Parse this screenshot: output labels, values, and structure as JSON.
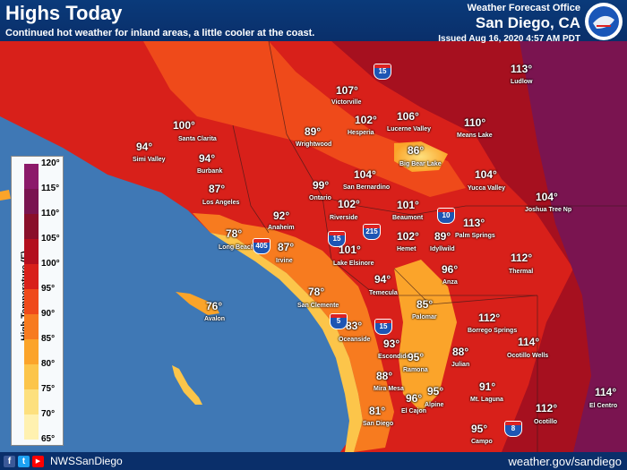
{
  "header": {
    "title": "Highs Today",
    "subtitle": "Continued hot weather for inland areas, a little cooler at the coast.",
    "office": "Weather Forecast Office",
    "city": "San Diego, CA",
    "issued": "Issued Aug 16, 2020 4:57 AM PDT"
  },
  "footer": {
    "handle": "NWSSanDiego",
    "website": "weather.gov/sandiego",
    "social": [
      {
        "icon": "f",
        "name": "facebook-icon",
        "color": "#3b5998"
      },
      {
        "icon": "t",
        "name": "twitter-icon",
        "color": "#1da1f2"
      },
      {
        "icon": "▶",
        "name": "youtube-icon",
        "color": "#ff0000"
      }
    ]
  },
  "legend": {
    "title": "High Temperature (F)",
    "ticks": [
      "120°",
      "115°",
      "110°",
      "105°",
      "100°",
      "95°",
      "90°",
      "85°",
      "80°",
      "75°",
      "70°",
      "65°"
    ],
    "colors": [
      "#8c1a6a",
      "#7a1450",
      "#8a0f2a",
      "#b30f1e",
      "#d8201a",
      "#ef4a1a",
      "#f77b1f",
      "#fba42a",
      "#fcc54a",
      "#fde07e",
      "#fff1b0"
    ]
  },
  "temperatures": [
    {
      "value": "100°",
      "place": "Santa Clarita"
    },
    {
      "value": "94°",
      "place": "Simi Valley"
    },
    {
      "value": "94°",
      "place": "Burbank"
    },
    {
      "value": "87°",
      "place": "Los Angeles"
    },
    {
      "value": "78°",
      "place": "Long Beach"
    },
    {
      "value": "92°",
      "place": "Anaheim"
    },
    {
      "value": "87°",
      "place": "Irvine"
    },
    {
      "value": "76°",
      "place": "Avalon"
    },
    {
      "value": "78°",
      "place": "San Clemente"
    },
    {
      "value": "89°",
      "place": "Wrightwood"
    },
    {
      "value": "107°",
      "place": "Victorville"
    },
    {
      "value": "102°",
      "place": "Hesperia"
    },
    {
      "value": "106°",
      "place": "Lucerne Valley"
    },
    {
      "value": "110°",
      "place": "Means Lake"
    },
    {
      "value": "113°",
      "place": "Ludlow"
    },
    {
      "value": "86°",
      "place": "Big Bear Lake"
    },
    {
      "value": "104°",
      "place": "San Bernardino"
    },
    {
      "value": "104°",
      "place": "Yucca Valley"
    },
    {
      "value": "104°",
      "place": "Joshua Tree Np"
    },
    {
      "value": "99°",
      "place": "Ontario"
    },
    {
      "value": "102°",
      "place": "Riverside"
    },
    {
      "value": "101°",
      "place": "Beaumont"
    },
    {
      "value": "113°",
      "place": "Palm Springs"
    },
    {
      "value": "101°",
      "place": "Lake Elsinore"
    },
    {
      "value": "102°",
      "place": "Hemet"
    },
    {
      "value": "89°",
      "place": "Idyllwild"
    },
    {
      "value": "112°",
      "place": "Thermal"
    },
    {
      "value": "96°",
      "place": "Anza"
    },
    {
      "value": "94°",
      "place": "Temecula"
    },
    {
      "value": "85°",
      "place": "Palomar"
    },
    {
      "value": "83°",
      "place": "Oceanside"
    },
    {
      "value": "93°",
      "place": "Escondido"
    },
    {
      "value": "95°",
      "place": "Ramona"
    },
    {
      "value": "88°",
      "place": "Julian"
    },
    {
      "value": "112°",
      "place": "Borrego Springs"
    },
    {
      "value": "114°",
      "place": "Ocotillo Wells"
    },
    {
      "value": "88°",
      "place": "Mira Mesa"
    },
    {
      "value": "96°",
      "place": "El Cajon"
    },
    {
      "value": "95°",
      "place": "Alpine"
    },
    {
      "value": "91°",
      "place": "Mt. Laguna"
    },
    {
      "value": "81°",
      "place": "San Diego"
    },
    {
      "value": "95°",
      "place": "Campo"
    },
    {
      "value": "112°",
      "place": "Ocotillo"
    },
    {
      "value": "114°",
      "place": "El Centro"
    }
  ],
  "highways": [
    "15",
    "215",
    "10",
    "405",
    "15",
    "5",
    "15",
    "8"
  ]
}
